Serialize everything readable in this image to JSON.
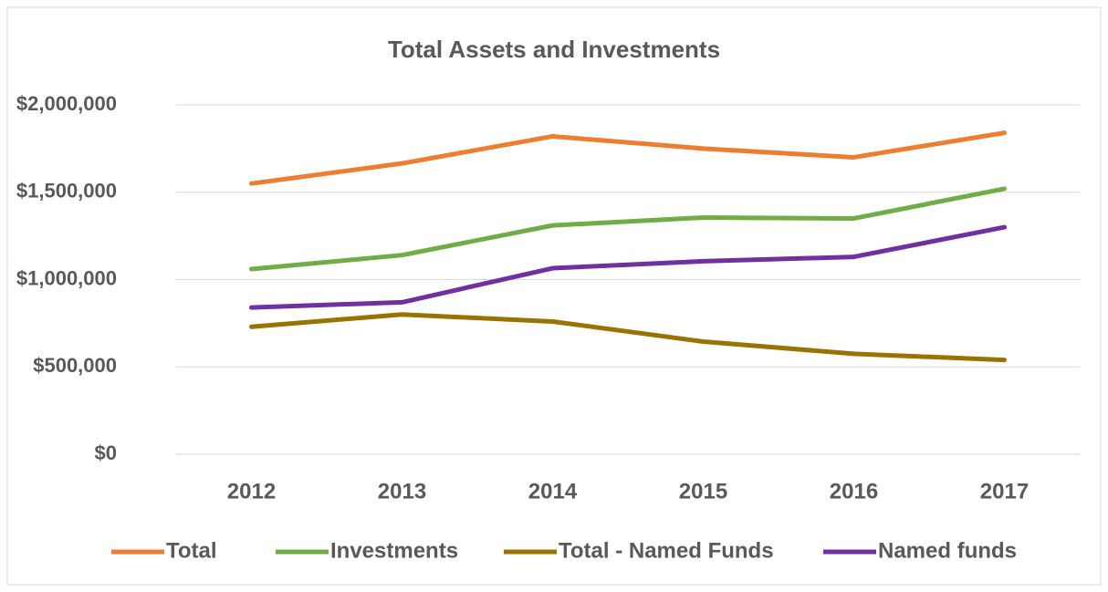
{
  "chart_data": {
    "type": "line",
    "title": "Total Assets and Investments",
    "categories": [
      "2012",
      "2013",
      "2014",
      "2015",
      "2016",
      "2017"
    ],
    "series": [
      {
        "name": "Total",
        "color": "#ed7d31",
        "values": [
          1550000,
          1665000,
          1820000,
          1750000,
          1700000,
          1840000
        ]
      },
      {
        "name": "Investments",
        "color": "#70ad47",
        "values": [
          1060000,
          1140000,
          1310000,
          1355000,
          1350000,
          1520000
        ]
      },
      {
        "name": "Total - Named Funds",
        "color": "#997300",
        "values": [
          730000,
          800000,
          760000,
          645000,
          575000,
          540000
        ]
      },
      {
        "name": "Named funds",
        "color": "#7030a0",
        "values": [
          840000,
          870000,
          1065000,
          1105000,
          1130000,
          1300000
        ]
      }
    ],
    "ylim": [
      0,
      2000000
    ],
    "yticks": [
      {
        "value": 0,
        "label": "$0"
      },
      {
        "value": 500000,
        "label": "$500,000"
      },
      {
        "value": 1000000,
        "label": "$1,000,000"
      },
      {
        "value": 1500000,
        "label": "$1,500,000"
      },
      {
        "value": 2000000,
        "label": "$2,000,000"
      }
    ],
    "grid": true,
    "legend": "bottom"
  }
}
